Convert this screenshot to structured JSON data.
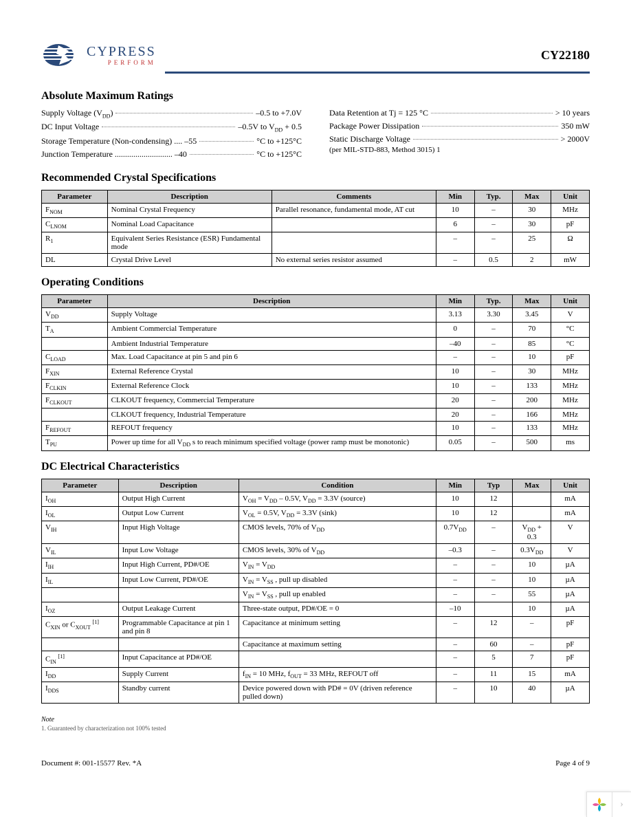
{
  "header": {
    "logo_main": "CYPRESS",
    "logo_sub": "PERFORM",
    "part_number": "CY22180",
    "rule_color": "#2b4a7a"
  },
  "sections": {
    "abs_max": {
      "title": "Absolute Maximum Ratings",
      "left": [
        {
          "label": "Supply Voltage (V_DD)",
          "value": "–0.5 to +7.0V"
        },
        {
          "label": "DC Input Voltage",
          "value": "–0.5V to V_DD + 0.5"
        },
        {
          "label": "Storage Temperature (Non-condensing) .... –55",
          "value": "°C to +125°C"
        },
        {
          "label": "Junction Temperature ............................ –40",
          "value": "°C to +125°C"
        }
      ],
      "right": [
        {
          "label": "Data Retention at Tj = 125 °C",
          "value": "> 10 years"
        },
        {
          "label": "Package Power Dissipation",
          "value": "350 mW"
        },
        {
          "label": "Static Discharge Voltage",
          "value": "> 2000V"
        }
      ],
      "right_subnote": "(per MIL-STD-883, Method 3015)  1"
    },
    "crystal": {
      "title": "Recommended Crystal Specifications",
      "columns": [
        "Parameter",
        "Description",
        "Comments",
        "Min",
        "Typ.",
        "Max",
        "Unit"
      ],
      "rows": [
        [
          "F_NOM",
          "Nominal Crystal Frequency",
          "Parallel resonance, fundamental mode, AT cut",
          "10",
          "–",
          "30",
          "MHz"
        ],
        [
          "C_LNOM",
          "Nominal Load Capacitance",
          "",
          "6",
          "–",
          "30",
          "pF"
        ],
        [
          "R_1",
          "Equivalent Series Resistance (ESR) Fundamental mode",
          "",
          "–",
          "–",
          "25",
          "Ω"
        ],
        [
          "DL",
          "Crystal Drive Level",
          "No external series resistor assumed",
          "–",
          "0.5",
          "2",
          "mW"
        ]
      ]
    },
    "operating": {
      "title": "Operating Conditions",
      "columns": [
        "Parameter",
        "Description",
        "Min",
        "Typ.",
        "Max",
        "Unit"
      ],
      "rows": [
        [
          "V_DD",
          "Supply Voltage",
          "3.13",
          "3.30",
          "3.45",
          "V"
        ],
        [
          "T_A",
          "Ambient Commercial Temperature",
          "0",
          "–",
          "70",
          "°C"
        ],
        [
          "",
          "Ambient Industrial Temperature",
          "–40",
          "–",
          "85",
          "°C"
        ],
        [
          "C_LOAD",
          "Max. Load Capacitance at pin 5 and pin 6",
          "–",
          "–",
          "10",
          "pF"
        ],
        [
          "F_XIN",
          "External Reference Crystal",
          "10",
          "–",
          "30",
          "MHz"
        ],
        [
          "F_CLKIN",
          "External Reference Clock",
          "10",
          "–",
          "133",
          "MHz"
        ],
        [
          "F_CLKOUT",
          "CLKOUT frequency, Commercial Temperature",
          "20",
          "–",
          "200",
          "MHz"
        ],
        [
          "",
          "CLKOUT frequency, Industrial Temperature",
          "20",
          "–",
          "166",
          "MHz"
        ],
        [
          "F_REFOUT",
          "REFOUT frequency",
          "10",
          "–",
          "133",
          "MHz"
        ],
        [
          "T_PU",
          "Power up time for all V_DD s to reach minimum specified voltage (power ramp must be monotonic)",
          "0.05",
          "–",
          "500",
          "ms"
        ]
      ]
    },
    "dc": {
      "title": "DC Electrical Characteristics",
      "columns": [
        "Parameter",
        "Description",
        "Condition",
        "Min",
        "Typ",
        "Max",
        "Unit"
      ],
      "rows": [
        [
          "I_OH",
          "Output High Current",
          "V_OH = V_DD – 0.5V, V_DD = 3.3V (source)",
          "10",
          "12",
          "",
          "mA"
        ],
        [
          "I_OL",
          "Output Low Current",
          "V_OL = 0.5V, V_DD = 3.3V (sink)",
          "10",
          "12",
          "",
          "mA"
        ],
        [
          "V_IH",
          "Input High Voltage",
          "CMOS levels, 70% of V_DD",
          "0.7V_DD",
          "–",
          "V_DD + 0.3",
          "V"
        ],
        [
          "V_IL",
          "Input Low Voltage",
          "CMOS levels, 30% of V_DD",
          "–0.3",
          "–",
          "0.3V_DD",
          "V"
        ],
        [
          "I_IH",
          "Input High Current, PD#/OE",
          "V_IN = V_DD",
          "–",
          "–",
          "10",
          "µA"
        ],
        [
          "I_IL",
          "Input Low Current, PD#/OE",
          "V_IN = V_SS , pull up disabled",
          "–",
          "–",
          "10",
          "µA"
        ],
        [
          "",
          "",
          "V_IN = V_SS , pull up enabled",
          "–",
          "–",
          "55",
          "µA"
        ],
        [
          "I_OZ",
          "Output Leakage Current",
          "Three-state output, PD#/OE = 0",
          "–10",
          "",
          "10",
          "µA"
        ],
        [
          "C_XIN or C_XOUT [1]",
          "Programmable Capacitance at pin 1 and pin 8",
          "Capacitance at minimum setting",
          "–",
          "12",
          "–",
          "pF"
        ],
        [
          "",
          "",
          "Capacitance at maximum setting",
          "–",
          "60",
          "–",
          "pF"
        ],
        [
          "C_IN [1]",
          "Input Capacitance at PD#/OE",
          "",
          "–",
          "5",
          "7",
          "pF"
        ],
        [
          "I_DD",
          "Supply Current",
          "f_IN = 10 MHz, f_OUT = 33 MHz, REFOUT off",
          "–",
          "11",
          "15",
          "mA"
        ],
        [
          "I_DDS",
          "Standby current",
          "Device powered down with PD# = 0V (driven reference pulled down)",
          "–",
          "10",
          "40",
          "µA"
        ]
      ]
    }
  },
  "note": {
    "title": "Note",
    "text": "1. Guaranteed by characterization not 100% tested"
  },
  "footer": {
    "doc": "Document #: 001-15577 Rev. *A",
    "page": "Page 4 of 9"
  },
  "style": {
    "header_bg": "#d0d0d0",
    "border_color": "#000000",
    "col_widths": {
      "crystal": [
        "12%",
        "30%",
        "30%",
        "7%",
        "7%",
        "7%",
        "7%"
      ],
      "operating": [
        "12%",
        "60%",
        "7%",
        "7%",
        "7%",
        "7%"
      ],
      "dc": [
        "14%",
        "22%",
        "36%",
        "7%",
        "7%",
        "7%",
        "7%"
      ]
    }
  }
}
